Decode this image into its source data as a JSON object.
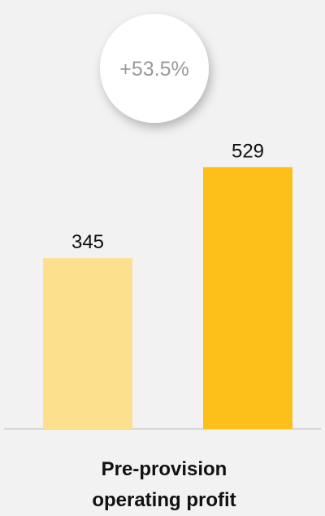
{
  "chart_data": {
    "type": "bar",
    "title": "Pre-provision operating profit",
    "annotation": "+53.5%",
    "categories": [
      null,
      null
    ],
    "values": [
      345,
      529
    ],
    "colors": [
      "#fde08e",
      "#fdc01a"
    ],
    "ylim": [
      0,
      860
    ],
    "grid": false
  }
}
